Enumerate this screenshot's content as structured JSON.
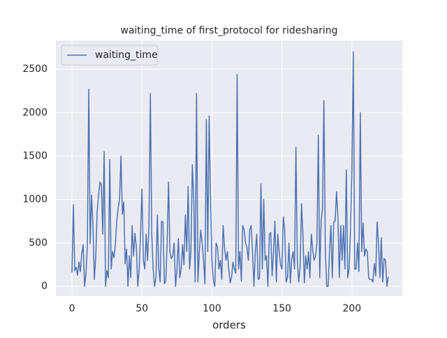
{
  "chart_data": {
    "type": "line",
    "title": "waiting_time of first_protocol for ridesharing",
    "x_label": "orders",
    "x": [
      0,
      1,
      2,
      3,
      4,
      5,
      6,
      7,
      8,
      9,
      10,
      11,
      12,
      13,
      14,
      15,
      16,
      17,
      18,
      19,
      20,
      21,
      22,
      23,
      24,
      25,
      26,
      27,
      28,
      29,
      30,
      31,
      32,
      33,
      34,
      35,
      36,
      37,
      38,
      39,
      40,
      41,
      42,
      43,
      44,
      45,
      46,
      47,
      48,
      49,
      50,
      51,
      52,
      53,
      54,
      55,
      56,
      57,
      58,
      59,
      60,
      61,
      62,
      63,
      64,
      65,
      66,
      67,
      68,
      69,
      70,
      71,
      72,
      73,
      74,
      75,
      76,
      77,
      78,
      79,
      80,
      81,
      82,
      83,
      84,
      85,
      86,
      87,
      88,
      89,
      90,
      91,
      92,
      93,
      94,
      95,
      96,
      97,
      98,
      99,
      100,
      101,
      102,
      103,
      104,
      105,
      106,
      107,
      108,
      109,
      110,
      111,
      112,
      113,
      114,
      115,
      116,
      117,
      118,
      119,
      120,
      121,
      122,
      123,
      124,
      125,
      126,
      127,
      128,
      129,
      130,
      131,
      132,
      133,
      134,
      135,
      136,
      137,
      138,
      139,
      140,
      141,
      142,
      143,
      144,
      145,
      146,
      147,
      148,
      149,
      150,
      151,
      152,
      153,
      154,
      155,
      156,
      157,
      158,
      159,
      160,
      161,
      162,
      163,
      164,
      165,
      166,
      167,
      168,
      169,
      170,
      171,
      172,
      173,
      174,
      175,
      176,
      177,
      178,
      179,
      180,
      181,
      182,
      183,
      184,
      185,
      186,
      187,
      188,
      189,
      190,
      191,
      192,
      193,
      194,
      195,
      196,
      197,
      198,
      199,
      200,
      201,
      202,
      203,
      204,
      205,
      206,
      207,
      208,
      209,
      210,
      211,
      212,
      213,
      214,
      215,
      216,
      217,
      218,
      219,
      220,
      221,
      222,
      223,
      224,
      225,
      226
    ],
    "series": [
      {
        "name": "waiting_time",
        "color": "#4c72b0",
        "values": [
          160,
          940,
          180,
          220,
          130,
          280,
          170,
          380,
          480,
          0,
          150,
          480,
          2270,
          490,
          1050,
          700,
          80,
          350,
          860,
          1050,
          1200,
          1170,
          600,
          1550,
          0,
          180,
          100,
          1460,
          200,
          400,
          330,
          480,
          750,
          900,
          1000,
          1500,
          830,
          970,
          260,
          430,
          0,
          350,
          100,
          700,
          350,
          610,
          450,
          0,
          200,
          600,
          1120,
          300,
          200,
          600,
          300,
          700,
          2220,
          600,
          200,
          0,
          100,
          820,
          200,
          50,
          750,
          740,
          30,
          60,
          500,
          1200,
          400,
          320,
          350,
          500,
          0,
          200,
          550,
          100,
          200,
          480,
          250,
          820,
          400,
          1150,
          200,
          400,
          1400,
          1000,
          50,
          2220,
          50,
          400,
          650,
          500,
          300,
          30,
          1920,
          400,
          1960,
          1000,
          300,
          70,
          0,
          500,
          450,
          200,
          300,
          80,
          700,
          450,
          300,
          400,
          200,
          40,
          100,
          280,
          200,
          150,
          2440,
          200,
          400,
          60,
          700,
          650,
          500,
          450,
          300,
          650,
          700,
          400,
          0,
          400,
          600,
          80,
          90,
          1180,
          200,
          1000,
          300,
          350,
          0,
          600,
          620,
          120,
          400,
          750,
          50,
          600,
          400,
          250,
          200,
          800,
          650,
          50,
          100,
          500,
          40,
          320,
          400,
          200,
          1600,
          300,
          50,
          220,
          950,
          600,
          40,
          350,
          200,
          400,
          100,
          600,
          420,
          300,
          350,
          500,
          1740,
          100,
          750,
          900,
          2140,
          400,
          0,
          0,
          400,
          700,
          100,
          740,
          750,
          1090,
          800,
          100,
          700,
          300,
          700,
          200,
          1340,
          100,
          200,
          650,
          1340,
          2700,
          200,
          200,
          500,
          170,
          2000,
          400,
          730,
          350,
          430,
          400,
          100,
          80,
          80,
          50,
          260,
          120,
          740,
          500,
          100,
          560,
          50,
          320,
          300,
          0,
          110
        ]
      }
    ],
    "xlim": [
      -11.5,
      236
    ],
    "ylim": [
      -112,
      2830
    ],
    "xticks": [
      0,
      50,
      100,
      150,
      200
    ],
    "yticks": [
      0,
      500,
      1000,
      1500,
      2000,
      2500
    ],
    "grid": true,
    "legend": "upper left"
  }
}
